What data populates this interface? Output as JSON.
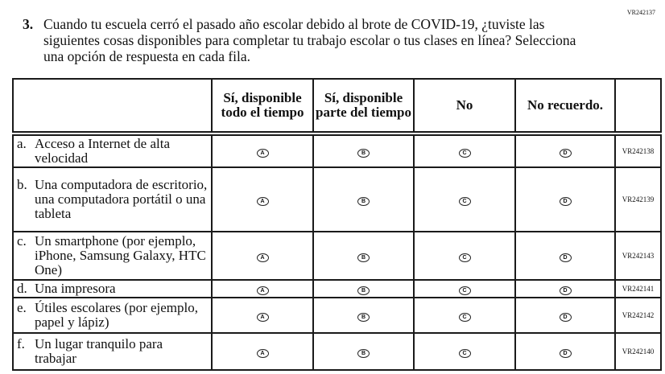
{
  "page_code": "VR242137",
  "question": {
    "number": "3.",
    "text": "Cuando tu escuela cerró el pasado año escolar debido al brote de COVID-19, ¿tuviste las siguientes cosas disponibles para completar tu trabajo escolar o tus clases en línea? Selecciona una opción de respuesta en cada fila."
  },
  "columns": [
    "Sí, disponible todo el tiempo",
    "Sí, disponible parte del tiempo",
    "No",
    "No recuerdo."
  ],
  "rows": [
    {
      "letter": "a.",
      "label": "Acceso a Internet de alta velocidad",
      "code": "VR242138",
      "options": [
        "A",
        "B",
        "C",
        "D"
      ]
    },
    {
      "letter": "b.",
      "label": "Una computadora de escritorio, una computadora portátil o una tableta",
      "code": "VR242139",
      "options": [
        "A",
        "B",
        "C",
        "D"
      ]
    },
    {
      "letter": "c.",
      "label": "Un smartphone (por ejemplo, iPhone, Samsung Galaxy, HTC One)",
      "code": "VR242143",
      "options": [
        "A",
        "B",
        "C",
        "D"
      ]
    },
    {
      "letter": "d.",
      "label": "Una impresora",
      "code": "VR242141",
      "options": [
        "A",
        "B",
        "C",
        "D"
      ]
    },
    {
      "letter": "e.",
      "label": "Útiles escolares (por ejemplo, papel y lápiz)",
      "code": "VR242142",
      "options": [
        "A",
        "B",
        "C",
        "D"
      ]
    },
    {
      "letter": "f.",
      "label": "Un lugar tranquilo para trabajar",
      "code": "VR242140",
      "options": [
        "A",
        "B",
        "C",
        "D"
      ]
    }
  ]
}
